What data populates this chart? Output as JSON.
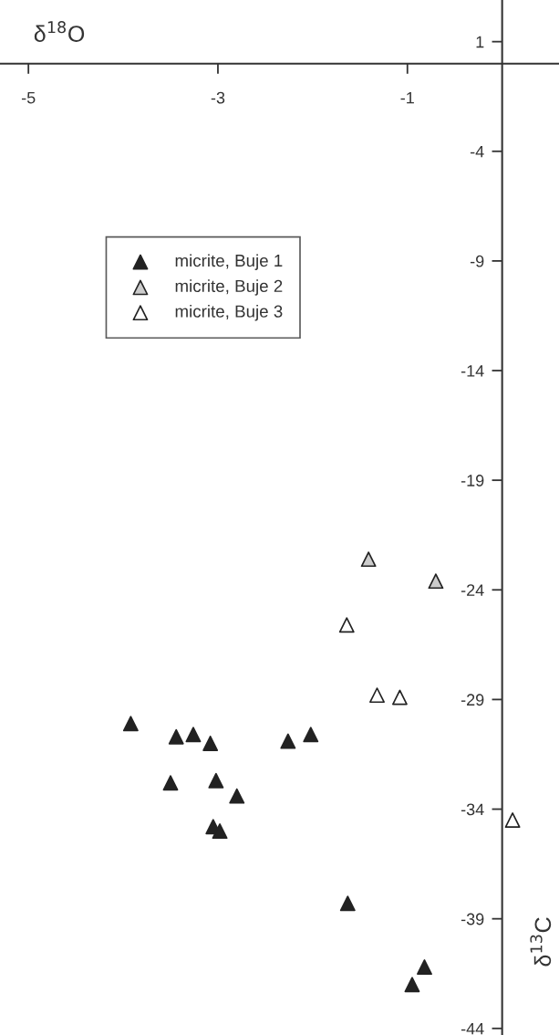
{
  "chart_data": {
    "type": "scatter",
    "xlabel": "δ$^{18}$O",
    "ylabel": "δ$^{13}$C",
    "xlim": [
      -5.3,
      0.6
    ],
    "ylim": [
      -44.3,
      2.9
    ],
    "xticks": [
      -5,
      -3,
      -1
    ],
    "yticks": [
      1,
      -4,
      -9,
      -14,
      -19,
      -24,
      -29,
      -34,
      -39,
      -44
    ],
    "marker": "triangle",
    "legend": "top left",
    "grid": false,
    "series": [
      {
        "name": "micrite, Buje 1",
        "color": "#222222",
        "x": [
          -3.92,
          -3.44,
          -3.26,
          -3.08,
          -2.26,
          -2.02,
          -3.5,
          -3.02,
          -2.8,
          -3.05,
          -2.98,
          -1.63,
          -0.82,
          -0.95
        ],
        "values": [
          -30.1,
          -30.7,
          -30.6,
          -31.0,
          -30.9,
          -30.6,
          -32.8,
          -32.7,
          -33.4,
          -34.8,
          -35.0,
          -38.3,
          -41.2,
          -42.0
        ]
      },
      {
        "name": "micrite, Buje 2",
        "color": "#cccccc",
        "x": [
          -1.41,
          -0.7
        ],
        "values": [
          -22.6,
          -23.6
        ]
      },
      {
        "name": "micrite, Buje 3",
        "color": "#ffffff",
        "x": [
          -1.64,
          -1.32,
          -1.08,
          0.11
        ],
        "values": [
          -25.6,
          -28.8,
          -28.9,
          -34.5
        ]
      }
    ]
  }
}
